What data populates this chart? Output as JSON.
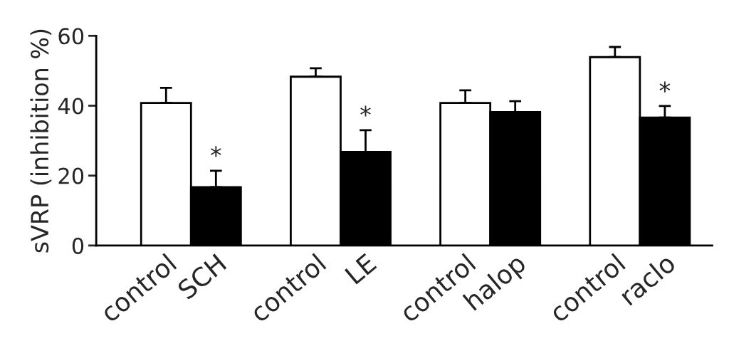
{
  "chart_data": {
    "type": "bar",
    "ylabel": "sVRP (inhibition %)",
    "categories": [
      "control",
      "SCH",
      null,
      "control",
      "LE",
      null,
      "control",
      "halop",
      null,
      "control",
      "raclo"
    ],
    "values": [
      40.8,
      16.7,
      null,
      48.3,
      26.8,
      null,
      40.8,
      38.2,
      null,
      53.9,
      36.6
    ],
    "colors": [
      "#ffffff",
      "#000000",
      null,
      "#ffffff",
      "#000000",
      null,
      "#ffffff",
      "#000000",
      null,
      "#ffffff",
      "#000000"
    ],
    "errors": [
      [
        40.8,
        45.1
      ],
      [
        16.7,
        21.4
      ],
      null,
      [
        48.3,
        50.7
      ],
      [
        26.8,
        33.0
      ],
      null,
      [
        40.8,
        44.4
      ],
      [
        38.2,
        41.3
      ],
      null,
      [
        53.9,
        56.8
      ],
      [
        36.6,
        39.9
      ]
    ],
    "ylim": [
      0,
      60
    ],
    "yticks": [
      0,
      20,
      40,
      60
    ],
    "grid": false,
    "legend": false,
    "annotations": [
      {
        "text": "*",
        "x": "SCH",
        "y": 21.4
      },
      {
        "text": "*",
        "x": "LE",
        "y": 33.0
      },
      {
        "text": "*",
        "x": "raclo",
        "y": 39.9
      }
    ]
  }
}
